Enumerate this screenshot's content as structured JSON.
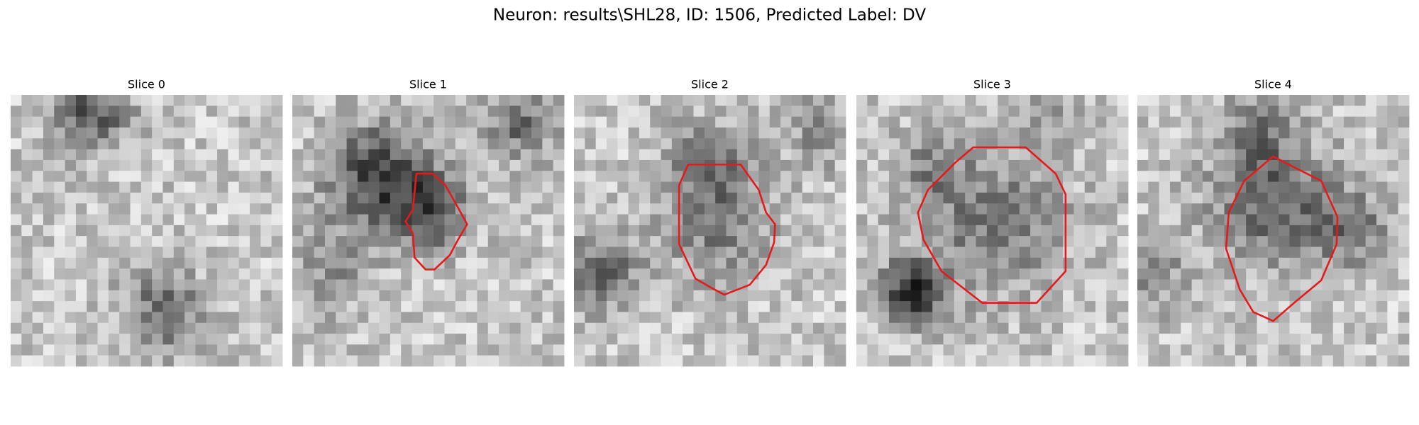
{
  "title": "Neuron: results\\SHL28, ID: 1506, Predicted Label: DV",
  "panels": [
    {
      "title": "Slice 0"
    },
    {
      "title": "Slice 1"
    },
    {
      "title": "Slice 2"
    },
    {
      "title": "Slice 3"
    },
    {
      "title": "Slice 4"
    }
  ]
}
